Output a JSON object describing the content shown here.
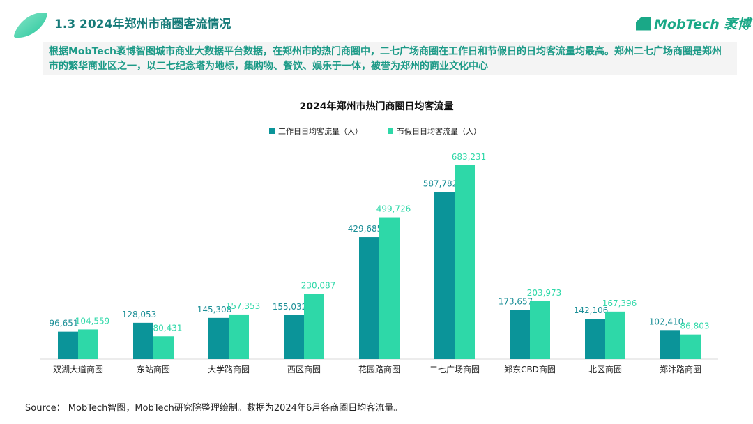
{
  "header": {
    "title": "1.3 2024年郑州市商圈客流情况",
    "logo_text": "MobTech 袤博"
  },
  "summary": "根据MobTech袤博智图城市商业大数据平台数据，在郑州市的热门商圈中，二七广场商圈在工作日和节假日的日均客流量均最高。郑州二七广场商圈是郑州市的繁华商业区之一，以二七纪念塔为地标，集购物、餐饮、娱乐于一体，被誉为郑州的商业文化中心",
  "source": "Source：  MobTech智图，MobTech研究院整理绘制。数据为2024年6月各商圈日均客流量。",
  "chart_data": {
    "type": "bar",
    "title": "2024年郑州市热门商圈日均客流量",
    "legend_position": "top-center",
    "categories": [
      "双湖大道商圈",
      "东站商圈",
      "大学路商圈",
      "西区商圈",
      "花园路商圈",
      "二七广场商圈",
      "郑东CBD商圈",
      "北区商圈",
      "郑汴路商圈"
    ],
    "series": [
      {
        "name": "工作日日均客流量（人）",
        "color": "#0b9499",
        "values": [
          96651,
          128053,
          145308,
          155032,
          429685,
          587782,
          173657,
          142106,
          102410
        ],
        "labels": [
          "96,651",
          "128,053",
          "145,308",
          "155,032",
          "429,685",
          "587,782",
          "173,657",
          "142,106",
          "102,410"
        ]
      },
      {
        "name": "节假日日均客流量（人）",
        "color": "#2ed8a8",
        "values": [
          104559,
          80431,
          157353,
          230087,
          499726,
          683231,
          203973,
          167396,
          86803
        ],
        "labels": [
          "104,559",
          "80,431",
          "157,353",
          "230,087",
          "499,726",
          "683,231",
          "203,973",
          "167,396",
          "86,803"
        ]
      }
    ],
    "ylim": [
      0,
      700000
    ],
    "grid": false,
    "xlabel": "",
    "ylabel": ""
  }
}
